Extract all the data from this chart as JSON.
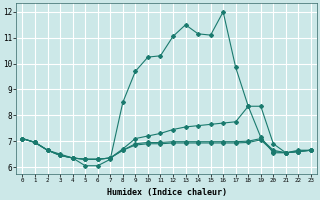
{
  "xlabel": "Humidex (Indice chaleur)",
  "background_color": "#cce8e8",
  "grid_color": "#ffffff",
  "line_color": "#1a7a6e",
  "xlim": [
    -0.5,
    23.5
  ],
  "ylim": [
    5.75,
    12.35
  ],
  "yticks": [
    6,
    7,
    8,
    9,
    10,
    11,
    12
  ],
  "xticks": [
    0,
    1,
    2,
    3,
    4,
    5,
    6,
    7,
    8,
    9,
    10,
    11,
    12,
    13,
    14,
    15,
    16,
    17,
    18,
    19,
    20,
    21,
    22,
    23
  ],
  "series1_x": [
    0,
    1,
    2,
    3,
    4,
    5,
    6,
    7,
    8,
    9,
    10,
    11,
    12,
    13,
    14,
    15,
    16,
    17,
    18,
    19,
    20,
    21,
    22,
    23
  ],
  "series1_y": [
    7.1,
    6.95,
    6.65,
    6.5,
    6.35,
    6.05,
    6.05,
    6.3,
    8.5,
    9.7,
    10.25,
    10.3,
    11.05,
    11.5,
    11.15,
    11.1,
    12.0,
    9.85,
    8.35,
    7.15,
    6.55,
    6.55,
    6.65,
    6.65
  ],
  "series2_x": [
    0,
    1,
    2,
    3,
    4,
    5,
    6,
    7,
    8,
    9,
    10,
    11,
    12,
    13,
    14,
    15,
    16,
    17,
    18,
    19,
    20,
    21,
    22,
    23
  ],
  "series2_y": [
    7.1,
    6.95,
    6.65,
    6.45,
    6.35,
    6.3,
    6.3,
    6.35,
    6.7,
    7.1,
    7.2,
    7.3,
    7.45,
    7.55,
    7.6,
    7.65,
    7.7,
    7.75,
    8.35,
    8.35,
    6.9,
    6.55,
    6.6,
    6.65
  ],
  "series3_x": [
    0,
    1,
    2,
    3,
    4,
    5,
    6,
    7,
    8,
    9,
    10,
    11,
    12,
    13,
    14,
    15,
    16,
    17,
    18,
    19,
    20,
    21,
    22,
    23
  ],
  "series3_y": [
    7.1,
    6.95,
    6.65,
    6.45,
    6.35,
    6.3,
    6.3,
    6.35,
    6.65,
    6.9,
    6.95,
    6.95,
    6.98,
    6.98,
    6.98,
    6.98,
    6.98,
    6.98,
    7.0,
    7.1,
    6.65,
    6.55,
    6.6,
    6.65
  ],
  "series4_x": [
    0,
    1,
    2,
    3,
    4,
    5,
    6,
    7,
    8,
    9,
    10,
    11,
    12,
    13,
    14,
    15,
    16,
    17,
    18,
    19,
    20,
    21,
    22,
    23
  ],
  "series4_y": [
    7.1,
    6.95,
    6.65,
    6.45,
    6.35,
    6.3,
    6.3,
    6.35,
    6.65,
    6.85,
    6.9,
    6.9,
    6.93,
    6.93,
    6.93,
    6.93,
    6.93,
    6.93,
    6.95,
    7.05,
    6.6,
    6.55,
    6.6,
    6.65
  ]
}
